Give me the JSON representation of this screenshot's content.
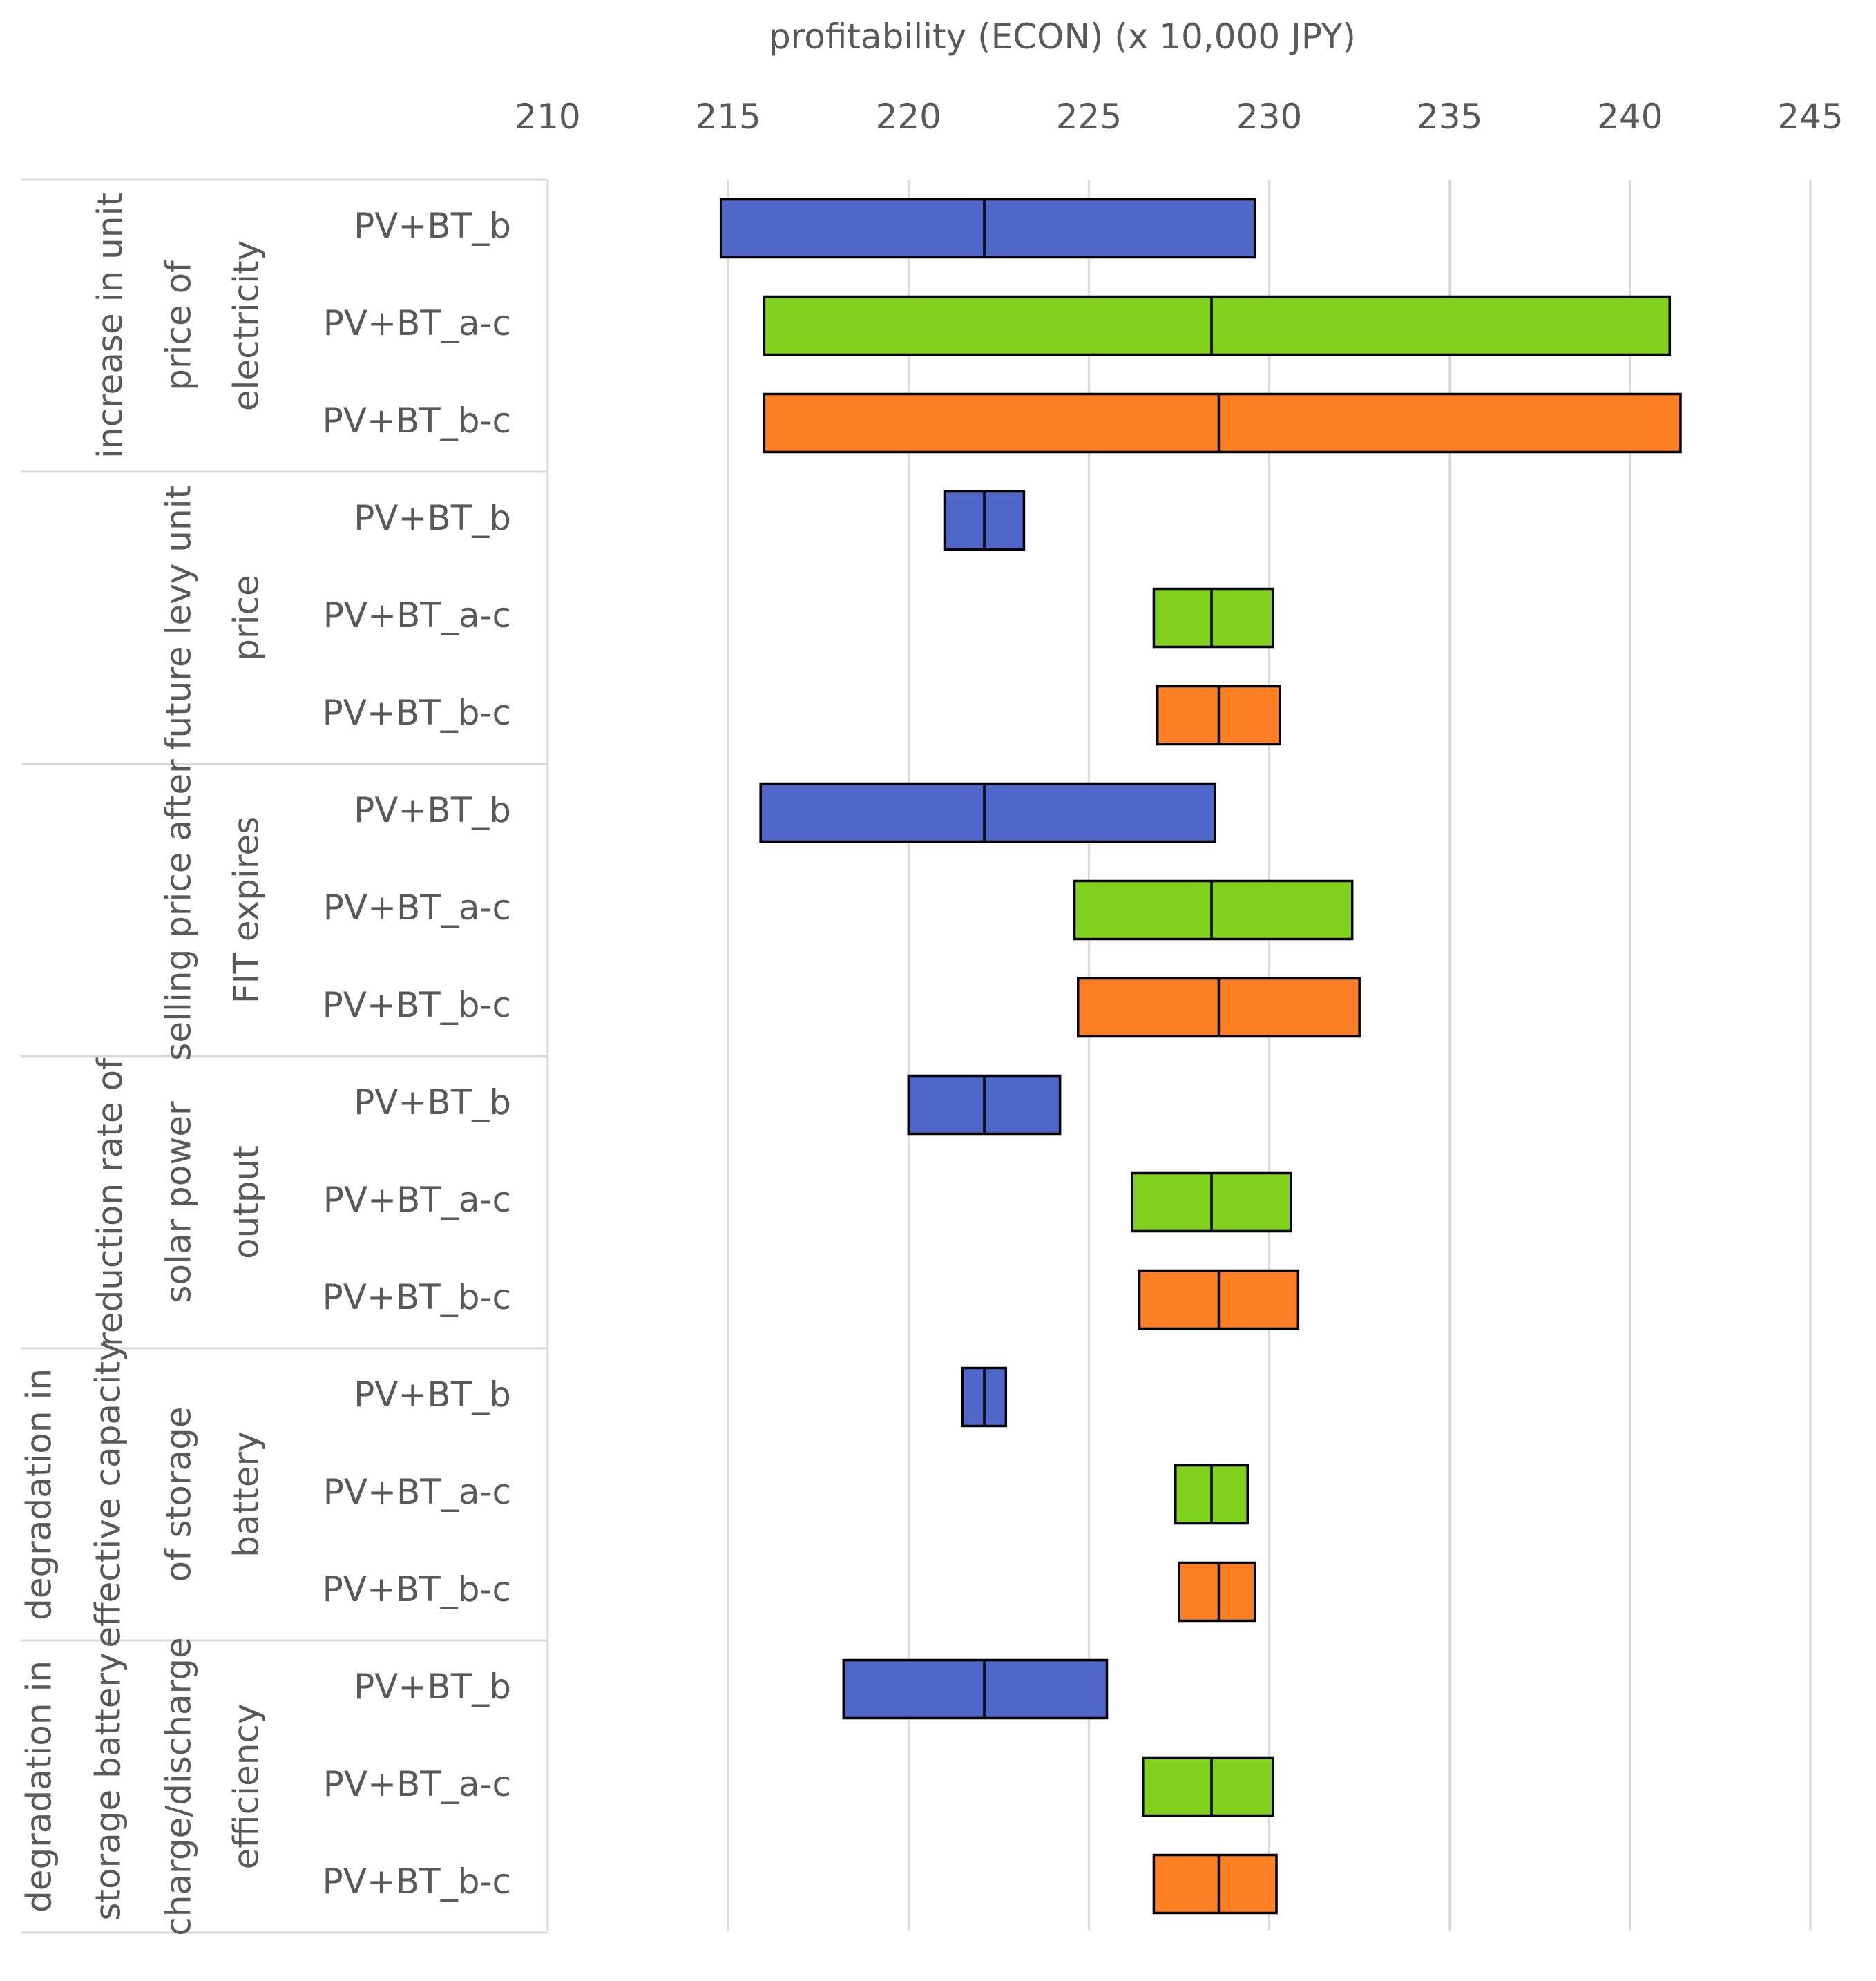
{
  "chart_data": {
    "type": "bar",
    "orientation": "horizontal-range",
    "title": "",
    "xlabel": "profitability (ECON) (x 10,000 JPY)",
    "ylabel": "",
    "xlim": [
      210,
      245
    ],
    "xticks": [
      "210",
      "215",
      "220",
      "225",
      "230",
      "235",
      "240",
      "245"
    ],
    "grid": true,
    "series_colors": {
      "PV+BT_b": "#4f67c9",
      "PV+BT_a-c": "#7fd11b",
      "PV+BT_b-c": "#fc7f23"
    },
    "groups": [
      {
        "label_lines": [
          "increase in unit",
          "price of",
          "electricity"
        ],
        "rows": [
          {
            "label": "PV+BT_b",
            "low": 214.8,
            "mid": 222.1,
            "high": 229.6
          },
          {
            "label": "PV+BT_a-c",
            "low": 216.0,
            "mid": 228.4,
            "high": 241.1
          },
          {
            "label": "PV+BT_b-c",
            "low": 216.0,
            "mid": 228.6,
            "high": 241.4
          }
        ]
      },
      {
        "label_lines": [
          "future levy unit",
          "price"
        ],
        "rows": [
          {
            "label": "PV+BT_b",
            "low": 221.0,
            "mid": 222.1,
            "high": 223.2
          },
          {
            "label": "PV+BT_a-c",
            "low": 226.8,
            "mid": 228.4,
            "high": 230.1
          },
          {
            "label": "PV+BT_b-c",
            "low": 226.9,
            "mid": 228.6,
            "high": 230.3
          }
        ]
      },
      {
        "label_lines": [
          "selling price after",
          "FIT expires"
        ],
        "rows": [
          {
            "label": "PV+BT_b",
            "low": 215.9,
            "mid": 222.1,
            "high": 228.5
          },
          {
            "label": "PV+BT_a-c",
            "low": 224.6,
            "mid": 228.4,
            "high": 232.3
          },
          {
            "label": "PV+BT_b-c",
            "low": 224.7,
            "mid": 228.6,
            "high": 232.5
          }
        ]
      },
      {
        "label_lines": [
          "reduction rate of",
          "solar power",
          "output"
        ],
        "rows": [
          {
            "label": "PV+BT_b",
            "low": 220.0,
            "mid": 222.1,
            "high": 224.2
          },
          {
            "label": "PV+BT_a-c",
            "low": 226.2,
            "mid": 228.4,
            "high": 230.6
          },
          {
            "label": "PV+BT_b-c",
            "low": 226.4,
            "mid": 228.6,
            "high": 230.8
          }
        ]
      },
      {
        "label_lines": [
          "degradation in",
          "effective capacity",
          "of storage",
          "battery"
        ],
        "rows": [
          {
            "label": "PV+BT_b",
            "low": 221.5,
            "mid": 222.1,
            "high": 222.7
          },
          {
            "label": "PV+BT_a-c",
            "low": 227.4,
            "mid": 228.4,
            "high": 229.4
          },
          {
            "label": "PV+BT_b-c",
            "low": 227.5,
            "mid": 228.6,
            "high": 229.6
          }
        ]
      },
      {
        "label_lines": [
          "degradation in",
          "storage battery",
          "charge/discharge",
          "efficiency"
        ],
        "rows": [
          {
            "label": "PV+BT_b",
            "low": 218.2,
            "mid": 222.1,
            "high": 225.5
          },
          {
            "label": "PV+BT_a-c",
            "low": 226.5,
            "mid": 228.4,
            "high": 230.1
          },
          {
            "label": "PV+BT_b-c",
            "low": 226.8,
            "mid": 228.6,
            "high": 230.2
          }
        ]
      }
    ]
  }
}
